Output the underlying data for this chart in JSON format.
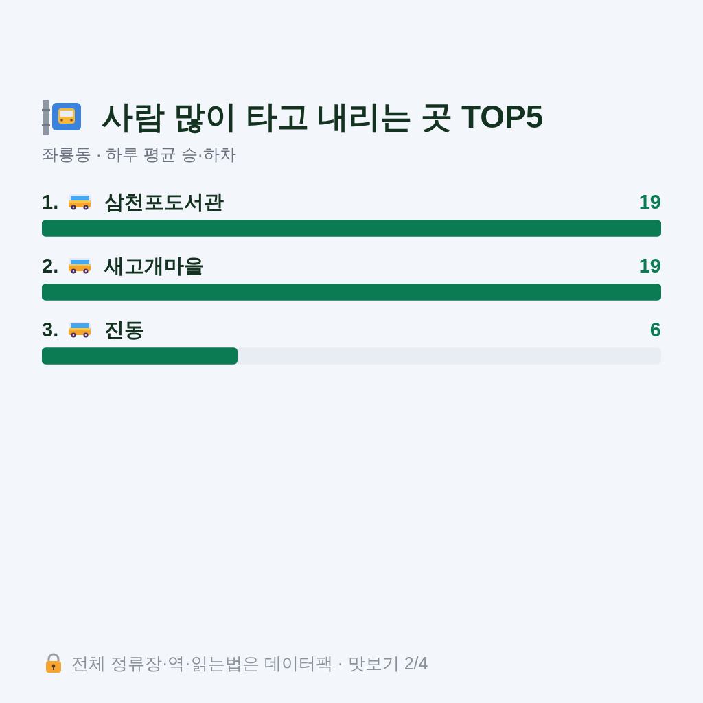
{
  "chart_data": {
    "type": "bar",
    "orientation": "horizontal",
    "title": "사람 많이 타고 내리는 곳 TOP5",
    "subtitle": "좌룡동 · 하루 평균 승·하차",
    "categories": [
      "1. 삼천포도서관",
      "2. 새고개마을",
      "3. 진동"
    ],
    "values": [
      19,
      19,
      6
    ],
    "color": "#0b7b53",
    "data_labels": true,
    "annotations": [
      "전체 정류장·역·읽는법은 데이터팩 · 맛보기 2/4"
    ]
  }
}
